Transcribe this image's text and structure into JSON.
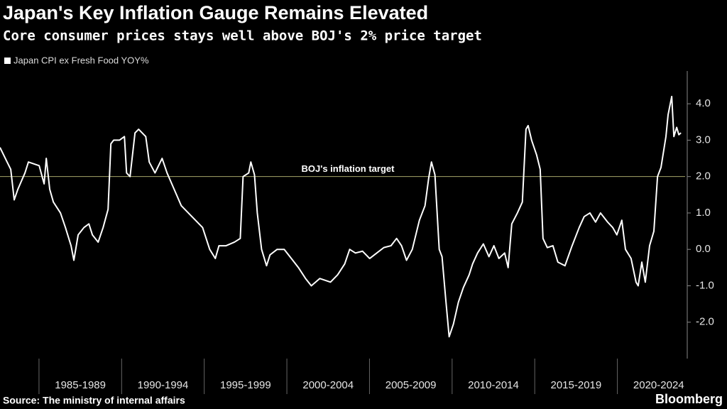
{
  "chart_data": {
    "type": "line",
    "title": "Japan's Key Inflation Gauge Remains Elevated",
    "subtitle": "Core consumer prices stays well above BOJ's 2% price target",
    "source": "Source: The ministry of internal affairs",
    "brand": "Bloomberg",
    "x": [
      1982.64,
      1983.07,
      1983.29,
      1983.5,
      1983.72,
      1984.15,
      1984.36,
      1985.01,
      1985.31,
      1985.44,
      1985.65,
      1985.87,
      1986.3,
      1986.6,
      1986.94,
      1987.11,
      1987.37,
      1987.72,
      1988.02,
      1988.23,
      1988.58,
      1988.88,
      1989.18,
      1989.35,
      1989.52,
      1989.87,
      1990.17,
      1990.3,
      1990.51,
      1990.81,
      1991.03,
      1991.46,
      1991.67,
      1992.02,
      1992.45,
      1992.75,
      1993.18,
      1993.61,
      1994.04,
      1994.47,
      1994.9,
      1995.33,
      1995.67,
      1995.89,
      1996.32,
      1996.83,
      1997.18,
      1997.35,
      1997.69,
      1997.82,
      1998.04,
      1998.21,
      1998.47,
      1998.77,
      1998.98,
      1999.41,
      1999.84,
      2000.27,
      2000.7,
      2001.13,
      2001.48,
      2001.99,
      2002.64,
      2003.07,
      2003.5,
      2003.8,
      2004.15,
      2004.58,
      2005.01,
      2005.44,
      2005.87,
      2006.3,
      2006.64,
      2006.94,
      2007.24,
      2007.59,
      2008.02,
      2008.36,
      2008.58,
      2008.75,
      2008.96,
      2009.22,
      2009.39,
      2009.61,
      2009.82,
      2010.08,
      2010.38,
      2010.68,
      2011.03,
      2011.24,
      2011.54,
      2011.89,
      2012.23,
      2012.53,
      2012.83,
      2013.18,
      2013.39,
      2013.61,
      2013.95,
      2014.25,
      2014.47,
      2014.6,
      2014.81,
      2015.11,
      2015.33,
      2015.5,
      2015.76,
      2016.1,
      2016.4,
      2016.83,
      2017.26,
      2017.69,
      2017.99,
      2018.34,
      2018.68,
      2018.98,
      2019.41,
      2019.72,
      2019.97,
      2020.27,
      2020.49,
      2020.83,
      2021.13,
      2021.26,
      2021.48,
      2021.69,
      2021.95,
      2022.21,
      2022.43,
      2022.64,
      2022.94,
      2023.07,
      2023.29,
      2023.42,
      2023.59,
      2023.72,
      2023.85
    ],
    "series": [
      {
        "name": "Japan CPI ex Fresh Food YOY%",
        "color": "#ffffff",
        "values": [
          2.8,
          2.4,
          2.2,
          1.36,
          1.65,
          2.1,
          2.4,
          2.3,
          1.8,
          2.5,
          1.65,
          1.3,
          1.0,
          0.6,
          0.1,
          -0.3,
          0.4,
          0.6,
          0.7,
          0.4,
          0.2,
          0.6,
          1.1,
          2.9,
          3.0,
          3.0,
          3.1,
          2.1,
          2.0,
          3.2,
          3.3,
          3.1,
          2.4,
          2.1,
          2.5,
          2.1,
          1.65,
          1.2,
          1.0,
          0.8,
          0.6,
          0.0,
          -0.25,
          0.1,
          0.1,
          0.2,
          0.3,
          2.0,
          2.1,
          2.4,
          2.05,
          1.0,
          0.0,
          -0.45,
          -0.15,
          0.0,
          0.0,
          -0.25,
          -0.5,
          -0.8,
          -1.0,
          -0.8,
          -0.9,
          -0.7,
          -0.4,
          0.0,
          -0.1,
          -0.05,
          -0.25,
          -0.1,
          0.05,
          0.1,
          0.3,
          0.1,
          -0.3,
          0.0,
          0.8,
          1.2,
          1.95,
          2.4,
          2.05,
          0.0,
          -0.2,
          -1.35,
          -2.4,
          -2.05,
          -1.45,
          -1.05,
          -0.7,
          -0.4,
          -0.1,
          0.15,
          -0.2,
          0.1,
          -0.25,
          -0.1,
          -0.5,
          0.7,
          1.0,
          1.3,
          3.3,
          3.4,
          3.0,
          2.6,
          2.2,
          0.3,
          0.05,
          0.1,
          -0.35,
          -0.45,
          0.1,
          0.6,
          0.9,
          1.0,
          0.75,
          1.0,
          0.75,
          0.6,
          0.4,
          0.8,
          0.0,
          -0.25,
          -0.9,
          -1.0,
          -0.35,
          -0.9,
          0.1,
          0.5,
          2.0,
          2.25,
          3.1,
          3.7,
          4.2,
          3.1,
          3.35,
          3.15,
          3.2
        ]
      }
    ],
    "reference_line": {
      "value": 2,
      "label": "BOJ's inflation target",
      "color": "#a6a66a"
    },
    "xlim": [
      1982.64,
      2024.1
    ],
    "xticks": [
      {
        "value": 1987.5,
        "label": "1985-1989"
      },
      {
        "value": 1992.5,
        "label": "1990-1994"
      },
      {
        "value": 1997.5,
        "label": "1995-1999"
      },
      {
        "value": 2002.5,
        "label": "2000-2004"
      },
      {
        "value": 2007.5,
        "label": "2005-2009"
      },
      {
        "value": 2012.5,
        "label": "2010-2014"
      },
      {
        "value": 2017.5,
        "label": "2015-2019"
      },
      {
        "value": 2022.5,
        "label": "2020-2024"
      }
    ],
    "ylim": [
      -3.0,
      4.9
    ],
    "yticks": [
      {
        "value": 4,
        "label": "4.0"
      },
      {
        "value": 3,
        "label": "3.0"
      },
      {
        "value": 2,
        "label": "2.0"
      },
      {
        "value": 1,
        "label": "1.0"
      },
      {
        "value": 0,
        "label": "0.0"
      },
      {
        "value": -1,
        "label": "-1.0"
      },
      {
        "value": -2,
        "label": "-2.0"
      }
    ]
  }
}
